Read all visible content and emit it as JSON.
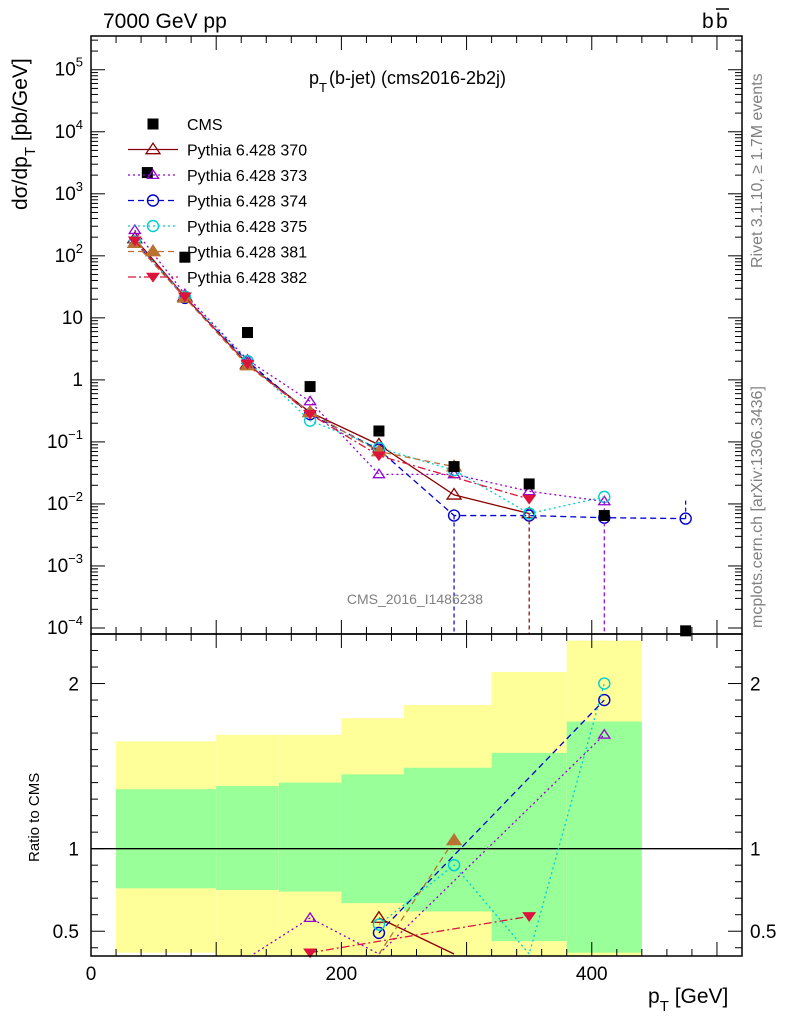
{
  "header": {
    "left": "7000 GeV pp",
    "right": "b",
    "right_bar": "b"
  },
  "side": {
    "rivet": "Rivet 3.1.10, ≥ 1.7M events",
    "mcplots": "mcplots.cern.ch [arXiv:1306.3436]"
  },
  "chart_data": [
    {
      "type": "line",
      "title_main": "p",
      "title_sub": "T",
      "title_rest": "(b-jet) (cms2016-2b2j)",
      "ylabel": {
        "a": "dσ/dp",
        "sub": "T",
        "b": " [pb/GeV]"
      },
      "watermark": "CMS_2016_I1486238",
      "xlim": [
        0,
        520
      ],
      "ylim": [
        8e-05,
        350000.0
      ],
      "yscale": "log",
      "ytick_labels": [
        {
          "v": 100000.0,
          "base": "10",
          "exp": "5"
        },
        {
          "v": 10000.0,
          "base": "10",
          "exp": "4"
        },
        {
          "v": 1000.0,
          "base": "10",
          "exp": "3"
        },
        {
          "v": 100.0,
          "base": "10",
          "exp": "2"
        },
        {
          "v": 10,
          "base": "10",
          "exp": ""
        },
        {
          "v": 1,
          "base": "1",
          "exp": ""
        },
        {
          "v": 0.1,
          "base": "10",
          "exp": "−1"
        },
        {
          "v": 0.01,
          "base": "10",
          "exp": "−2"
        },
        {
          "v": 0.001,
          "base": "10",
          "exp": "−3"
        },
        {
          "v": 0.0001,
          "base": "10",
          "exp": "−4"
        }
      ],
      "legend_position": "top-left",
      "data": {
        "name": "CMS",
        "x": [
          45,
          75,
          125,
          175,
          230,
          290,
          350,
          410,
          475
        ],
        "y": [
          2200,
          95,
          5.8,
          0.78,
          0.15,
          0.04,
          0.021,
          0.0065,
          9e-05
        ]
      },
      "series": [
        {
          "name": "Pythia 6.428 370",
          "color": "#8b0000",
          "marker": "triangle-open",
          "dash": "solid",
          "x": [
            35,
            75,
            125,
            175,
            230,
            290,
            350
          ],
          "y": [
            190,
            22,
            1.8,
            0.3,
            0.09,
            0.014,
            0.007
          ]
        },
        {
          "name": "Pythia 6.428 373",
          "color": "#9400d3",
          "marker": "triangle-open-small",
          "dash": "dotted",
          "x": [
            35,
            75,
            125,
            175,
            230,
            290,
            350,
            410
          ],
          "y": [
            260,
            24,
            2.1,
            0.45,
            0.03,
            0.03,
            0.016,
            0.011
          ]
        },
        {
          "name": "Pythia 6.428 374",
          "color": "#0000cd",
          "marker": "circle-open",
          "dash": "dashed",
          "x": [
            35,
            75,
            125,
            175,
            230,
            290,
            350,
            410,
            475
          ],
          "y": [
            170,
            21,
            2.0,
            0.28,
            0.075,
            0.0065,
            0.0065,
            0.006,
            0.0058
          ]
        },
        {
          "name": "Pythia 6.428 375",
          "color": "#00ced1",
          "marker": "circle-open",
          "dash": "dotted",
          "x": [
            35,
            75,
            125,
            175,
            230,
            290,
            350,
            410
          ],
          "y": [
            170,
            22,
            2.0,
            0.22,
            0.08,
            0.035,
            0.007,
            0.013
          ]
        },
        {
          "name": "Pythia 6.428 381",
          "color": "#b87333",
          "marker": "triangle-filled",
          "dash": "dashed",
          "x": [
            35,
            75,
            125,
            175,
            230,
            290
          ],
          "y": [
            160,
            21,
            1.7,
            0.3,
            0.07,
            0.04
          ]
        },
        {
          "name": "Pythia 6.428 382",
          "color": "#dc143c",
          "marker": "triangle-down-filled",
          "dash": "dashdot",
          "x": [
            35,
            75,
            125,
            175,
            230,
            350
          ],
          "y": [
            175,
            22,
            1.8,
            0.28,
            0.06,
            0.012
          ]
        }
      ]
    },
    {
      "type": "line",
      "ylabel": "Ratio to CMS",
      "xlabel": {
        "a": "p",
        "sub": "T",
        "b": " [GeV]"
      },
      "xlim": [
        0,
        520
      ],
      "ylim": [
        0.35,
        2.3
      ],
      "x_ticks": [
        0,
        200,
        400
      ],
      "y_ticks": [
        0.5,
        1,
        2
      ],
      "bands": {
        "edges": [
          20,
          100,
          150,
          200,
          250,
          320,
          380,
          440
        ],
        "green_lo": [
          0.76,
          0.75,
          0.74,
          0.67,
          0.62,
          0.44,
          0.37
        ],
        "green_hi": [
          1.36,
          1.38,
          1.4,
          1.45,
          1.49,
          1.58,
          1.77
        ],
        "yellow_lo": [
          0.37,
          0.3,
          0.28,
          0.25,
          0.25,
          0.2,
          0.15
        ],
        "yellow_hi": [
          1.65,
          1.69,
          1.69,
          1.79,
          1.87,
          2.07,
          2.26
        ]
      },
      "ratios": [
        {
          "name": "Pythia 6.428 370",
          "x": [
            230,
            290
          ],
          "y": [
            0.58,
            0.25
          ]
        },
        {
          "name": "Pythia 6.428 373",
          "x": [
            130,
            175,
            230,
            410
          ],
          "y": [
            0.25,
            0.58,
            0.2,
            1.69
          ]
        },
        {
          "name": "Pythia 6.428 374",
          "x": [
            230,
            410
          ],
          "y": [
            0.49,
            1.9
          ]
        },
        {
          "name": "Pythia 6.428 375",
          "x": [
            230,
            290,
            350,
            410
          ],
          "y": [
            0.54,
            0.9,
            0.25,
            2.0
          ]
        },
        {
          "name": "Pythia 6.428 381",
          "x": [
            230,
            290
          ],
          "y": [
            0.35,
            1.05
          ]
        },
        {
          "name": "Pythia 6.428 382",
          "x": [
            175,
            350
          ],
          "y": [
            0.37,
            0.59
          ]
        }
      ]
    }
  ]
}
